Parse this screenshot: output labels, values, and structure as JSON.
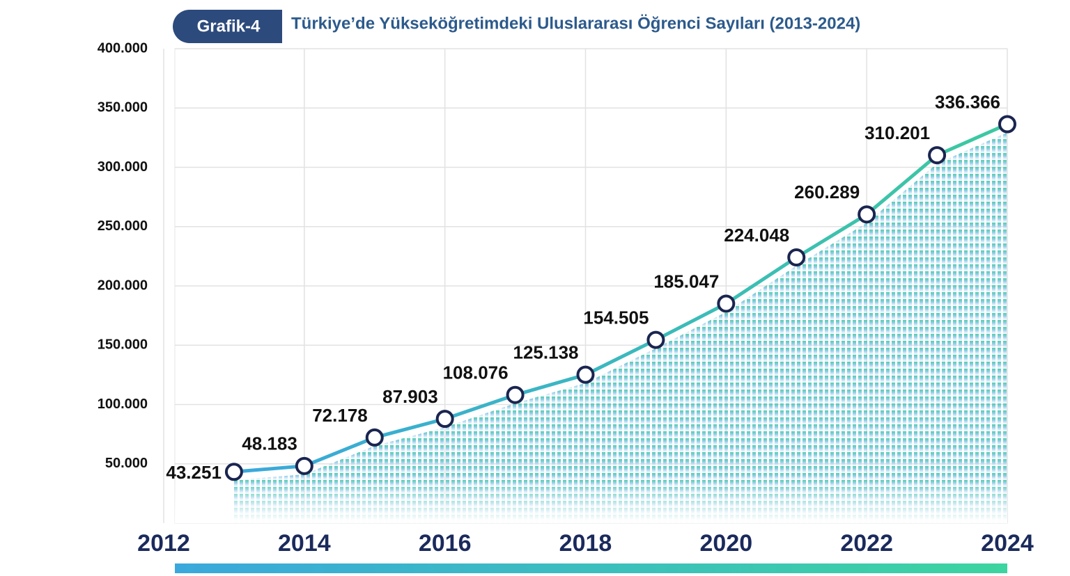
{
  "chart_data": {
    "type": "line",
    "figure_label": "Grafik-4",
    "title": "Türkiye’de Yükseköğretimdeki Uluslararası Öğrenci Sayıları (2013-2024)",
    "x": [
      2013,
      2014,
      2015,
      2016,
      2017,
      2018,
      2019,
      2020,
      2021,
      2022,
      2023,
      2024
    ],
    "series": [
      {
        "name": "Uluslararası Öğrenci",
        "color": "#3aaed8",
        "values": [
          43251,
          48183,
          72178,
          87903,
          108076,
          125138,
          154505,
          185047,
          224048,
          260289,
          310201,
          336366
        ],
        "value_labels": [
          "43.251",
          "48.183",
          "72.178",
          "87.903",
          "108.076",
          "125.138",
          "154.505",
          "185.047",
          "224.048",
          "260.289",
          "310.201",
          "336.366"
        ]
      }
    ],
    "xlim": [
      2012,
      2024
    ],
    "xticks": [
      2012,
      2014,
      2016,
      2018,
      2020,
      2022,
      2024
    ],
    "ylim": [
      0,
      400000
    ],
    "yticks": [
      {
        "value": 50000,
        "label": "50.000"
      },
      {
        "value": 100000,
        "label": "100.000"
      },
      {
        "value": 150000,
        "label": "150.000"
      },
      {
        "value": 200000,
        "label": "200.000"
      },
      {
        "value": 250000,
        "label": "250.000"
      },
      {
        "value": 300000,
        "label": "300.000"
      },
      {
        "value": 350000,
        "label": "350.000"
      },
      {
        "value": 400000,
        "label": "400.000"
      }
    ],
    "grid": true
  }
}
